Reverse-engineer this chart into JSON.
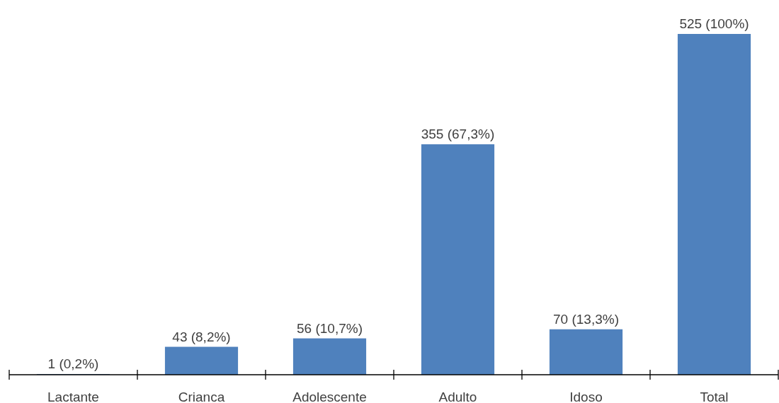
{
  "chart_data": {
    "type": "bar",
    "categories": [
      "Lactante",
      "Crianca",
      "Adolescente",
      "Adulto",
      "Idoso",
      "Total"
    ],
    "values": [
      1,
      43,
      56,
      355,
      70,
      525
    ],
    "color": "#4f81bd",
    "value_labels": [
      "1 (0,2%)",
      "43 (8,2%)",
      "56 (10,7%)",
      "355 (67,3%)",
      "70 (13,3%)",
      "525 (100%)"
    ]
  }
}
